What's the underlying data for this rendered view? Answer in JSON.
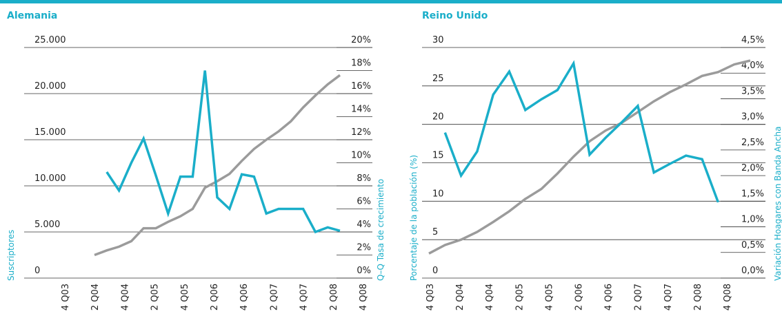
{
  "chart_data": [
    {
      "type": "line",
      "title": "Alemania",
      "ylabel": "Suscriptores",
      "y2label": "Q–Q Tasa de crecimiento",
      "categories": [
        "4 Q03",
        null,
        "2 Q04",
        null,
        "4 Q04",
        null,
        "2 Q05",
        null,
        "4 Q05",
        null,
        "2 Q06",
        null,
        "4 Q06",
        null,
        "2 Q07",
        null,
        "4 Q07",
        null,
        "2 Q08",
        null,
        "4 Q08"
      ],
      "series": [
        {
          "color": "#9b9b9b",
          "axis": "y",
          "values": [
            2500,
            3000,
            3400,
            4000,
            5400,
            5400,
            6100,
            6700,
            7500,
            9800,
            10500,
            11300,
            12700,
            14000,
            15000,
            15900,
            17000,
            18500,
            19800,
            21000,
            22000
          ]
        },
        {
          "color": "#1aaec9",
          "axis": "y2",
          "values": [
            null,
            9.2,
            7.6,
            10.0,
            12.1,
            8.9,
            5.6,
            8.8,
            8.8,
            18.0,
            7.0,
            6.0,
            9.0,
            8.8,
            5.6,
            6.0,
            6.0,
            6.0,
            4.0,
            4.4,
            4.1
          ]
        }
      ],
      "ylim": [
        0,
        25000
      ],
      "yticks": [
        0,
        {
          "value": 5000,
          "label": "5.000"
        },
        {
          "value": 10000,
          "label": "10.000"
        },
        {
          "value": 15000,
          "label": "15.000"
        },
        {
          "value": 20000,
          "label": "20.000"
        },
        {
          "value": 25000,
          "label": "25.000"
        }
      ],
      "y2lim": [
        0,
        20
      ],
      "y2ticks": [
        {
          "value": 0,
          "label": "0%"
        },
        {
          "value": 2,
          "label": "2%"
        },
        {
          "value": 4,
          "label": "4%"
        },
        {
          "value": 6,
          "label": "6%"
        },
        {
          "value": 8,
          "label": "8%"
        },
        {
          "value": 10,
          "label": "10%"
        },
        {
          "value": 12,
          "label": "12%"
        },
        {
          "value": 14,
          "label": "14%"
        },
        {
          "value": 16,
          "label": "16%"
        },
        {
          "value": 18,
          "label": "18%"
        },
        {
          "value": 20,
          "label": "20%"
        }
      ]
    },
    {
      "type": "line",
      "title": "Reino Unido",
      "ylabel": "Porcentaje de la población (%)",
      "y2label": "Variación Hoagares con Banda Ancha",
      "categories": [
        "4 Q03",
        null,
        "2 Q04",
        null,
        "4 Q04",
        null,
        "2 Q05",
        null,
        "4 Q05",
        null,
        "2 Q06",
        null,
        "4 Q06",
        null,
        "2 Q07",
        null,
        "4 Q07",
        null,
        "2 Q08",
        null,
        "4 Q08"
      ],
      "series": [
        {
          "color": "#9b9b9b",
          "axis": "y",
          "values": [
            3.2,
            4.3,
            5.0,
            6.0,
            7.3,
            8.7,
            10.3,
            11.6,
            13.6,
            15.8,
            17.8,
            19.2,
            20.2,
            21.6,
            23.0,
            24.2,
            25.2,
            26.3,
            26.8,
            27.8,
            28.3
          ]
        },
        {
          "color": "#1aaec9",
          "axis": "y2",
          "values": [
            null,
            2.84,
            2.0,
            2.47,
            3.58,
            4.03,
            3.28,
            3.49,
            3.67,
            4.19,
            2.41,
            2.74,
            3.04,
            3.36,
            2.06,
            2.23,
            2.39,
            2.32,
            1.48,
            null,
            null
          ]
        }
      ],
      "ylim": [
        0,
        30
      ],
      "yticks": [
        0,
        5,
        10,
        15,
        20,
        25,
        30
      ],
      "y2lim": [
        0,
        4.5
      ],
      "y2ticks": [
        {
          "value": 0,
          "label": "0,0%"
        },
        {
          "value": 0.5,
          "label": "0,5%"
        },
        {
          "value": 1,
          "label": "1,0%"
        },
        {
          "value": 1.5,
          "label": "1,5%"
        },
        {
          "value": 2,
          "label": "2,0%"
        },
        {
          "value": 2.5,
          "label": "2,5%"
        },
        {
          "value": 3,
          "label": "3,0%"
        },
        {
          "value": 3.5,
          "label": "3,5%"
        },
        {
          "value": 4,
          "label": "4,0%"
        },
        {
          "value": 4.5,
          "label": "4,5%"
        }
      ]
    }
  ]
}
